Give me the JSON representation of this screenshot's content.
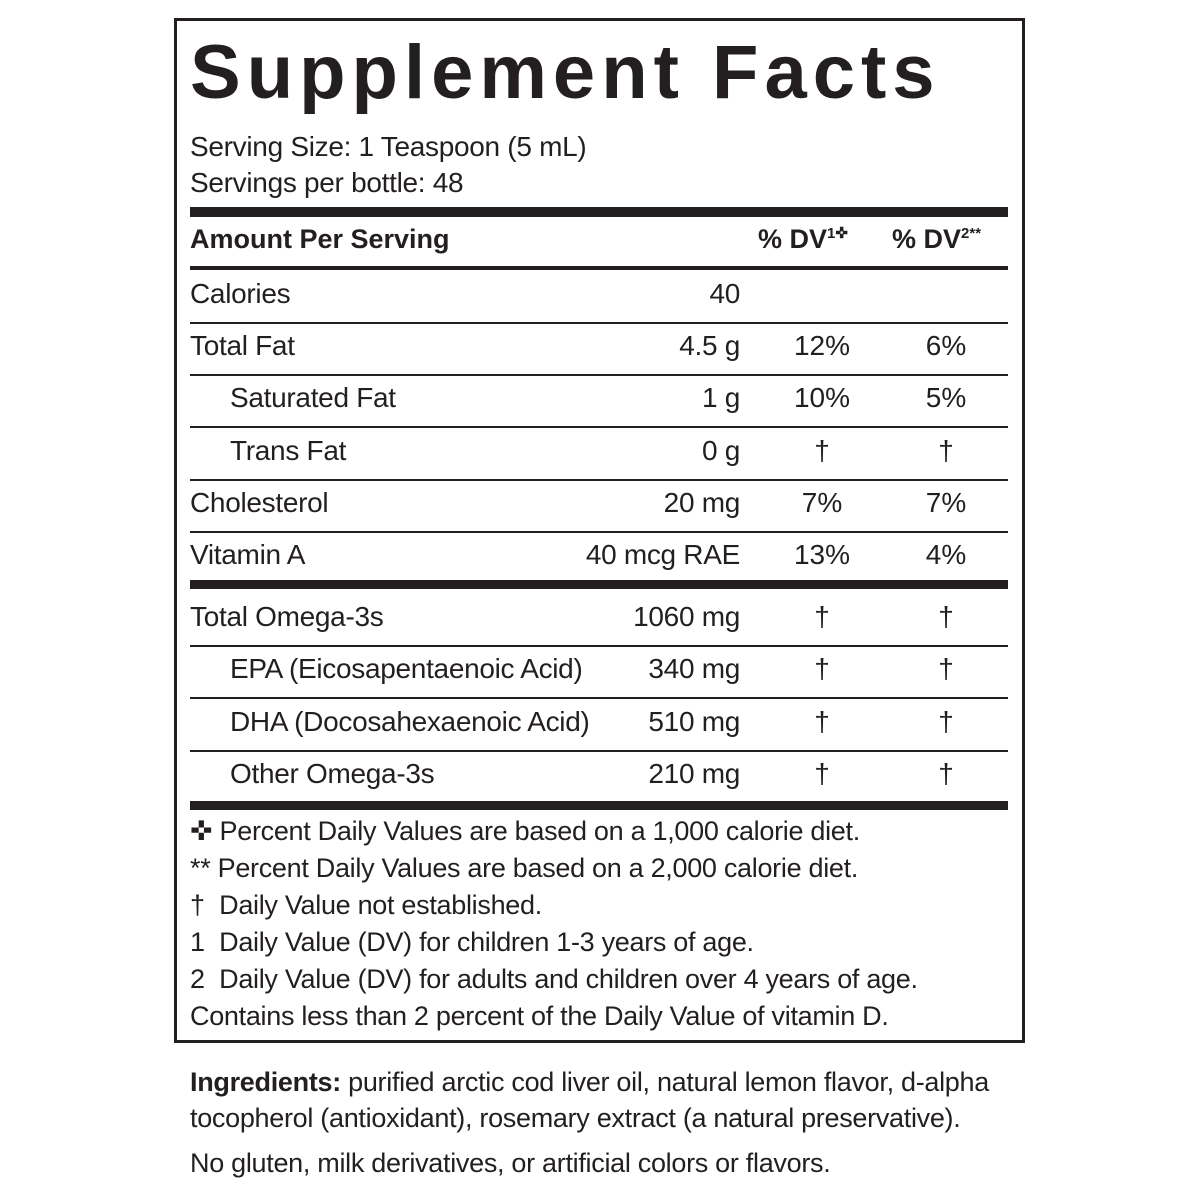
{
  "title": "Supplement Facts",
  "serving_size": "Serving Size: 1 Teaspoon (5 mL)",
  "servings_per": "Servings per bottle: 48",
  "header": {
    "amount": "Amount Per Serving",
    "dv1": "% DV",
    "dv1_sup": "1✜",
    "dv2": "% DV",
    "dv2_sup": "2**"
  },
  "rows": [
    {
      "name": "Calories",
      "amount": "40",
      "dv1": "",
      "dv2": ""
    },
    {
      "name": "Total Fat",
      "amount": "4.5 g",
      "dv1": "12%",
      "dv2": "6%"
    },
    {
      "name": "Saturated Fat",
      "amount": "1 g",
      "dv1": "10%",
      "dv2": "5%"
    },
    {
      "name": "Trans Fat",
      "amount": "0 g",
      "dv1": "†",
      "dv2": "†"
    },
    {
      "name": "Cholesterol",
      "amount": "20 mg",
      "dv1": "7%",
      "dv2": "7%"
    },
    {
      "name": "Vitamin A",
      "amount": "40 mcg RAE",
      "dv1": "13%",
      "dv2": "4%"
    },
    {
      "name": "Total Omega-3s",
      "amount": "1060 mg",
      "dv1": "†",
      "dv2": "†"
    },
    {
      "name": "EPA (Eicosapentaenoic Acid)",
      "amount": "340 mg",
      "dv1": "†",
      "dv2": "†"
    },
    {
      "name": "DHA (Docosahexaenoic Acid)",
      "amount": "510 mg",
      "dv1": "†",
      "dv2": "†"
    },
    {
      "name": "Other Omega-3s",
      "amount": "210 mg",
      "dv1": "†",
      "dv2": "†"
    }
  ],
  "footnotes": [
    "✜ Percent Daily Values are based on a 1,000 calorie diet.",
    "** Percent Daily Values are based on a 2,000 calorie diet.",
    "†  Daily Value not established.",
    "1  Daily Value (DV) for children 1-3 years of age.",
    "2  Daily Value (DV) for adults and children over 4 years of age.",
    "Contains less than 2 percent of the Daily Value of vitamin D."
  ],
  "ingredients": {
    "label": "Ingredients:",
    "line1": " purified arctic cod liver oil, natural lemon flavor, d-alpha",
    "line2": "tocopherol (antioxidant), rosemary extract (a natural preservative).",
    "note": "No gluten, milk derivatives, or artificial colors or flavors."
  }
}
